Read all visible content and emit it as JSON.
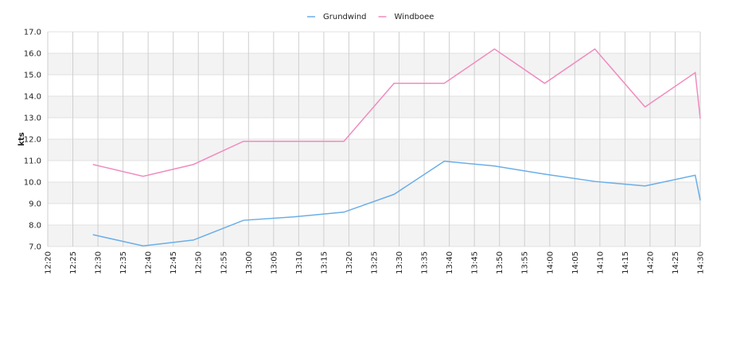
{
  "chart_data": {
    "type": "line",
    "y_label": "kts",
    "x": [
      "12:29",
      "12:39",
      "12:49",
      "12:59",
      "13:09",
      "13:19",
      "13:29",
      "13:39",
      "13:49",
      "13:59",
      "14:09",
      "14:19",
      "14:29",
      "14:30"
    ],
    "series": [
      {
        "name": "Grundwind",
        "color": "#6aaee8",
        "values": [
          7.55,
          7.03,
          7.3,
          8.22,
          8.38,
          8.6,
          9.43,
          10.97,
          10.75,
          10.37,
          10.03,
          9.82,
          10.32,
          9.15
        ]
      },
      {
        "name": "Windboee",
        "color": "#f08bbf",
        "values": [
          10.82,
          10.27,
          10.82,
          11.9,
          11.9,
          11.9,
          14.6,
          14.6,
          16.2,
          14.6,
          16.2,
          13.5,
          15.1,
          12.95
        ]
      }
    ],
    "xlim": [
      "12:20",
      "14:30"
    ],
    "xticks": [
      "12:20",
      "12:25",
      "12:30",
      "12:35",
      "12:40",
      "12:45",
      "12:50",
      "12:55",
      "13:00",
      "13:05",
      "13:10",
      "13:15",
      "13:20",
      "13:25",
      "13:30",
      "13:35",
      "13:40",
      "13:45",
      "13:50",
      "13:55",
      "14:00",
      "14:05",
      "14:10",
      "14:15",
      "14:20",
      "14:25",
      "14:30"
    ],
    "ylim": [
      7,
      17
    ],
    "yticks": [
      {
        "value": 7,
        "label": "7.0"
      },
      {
        "value": 8,
        "label": "8.0"
      },
      {
        "value": 9,
        "label": "9.0"
      },
      {
        "value": 10,
        "label": "10.0"
      },
      {
        "value": 11,
        "label": "11.0"
      },
      {
        "value": 12,
        "label": "12.0"
      },
      {
        "value": 13,
        "label": "13.0"
      },
      {
        "value": 14,
        "label": "14.0"
      },
      {
        "value": 15,
        "label": "15.0"
      },
      {
        "value": 16,
        "label": "16.0"
      },
      {
        "value": 17,
        "label": "17.0"
      }
    ],
    "grid": true,
    "legend": "top"
  }
}
